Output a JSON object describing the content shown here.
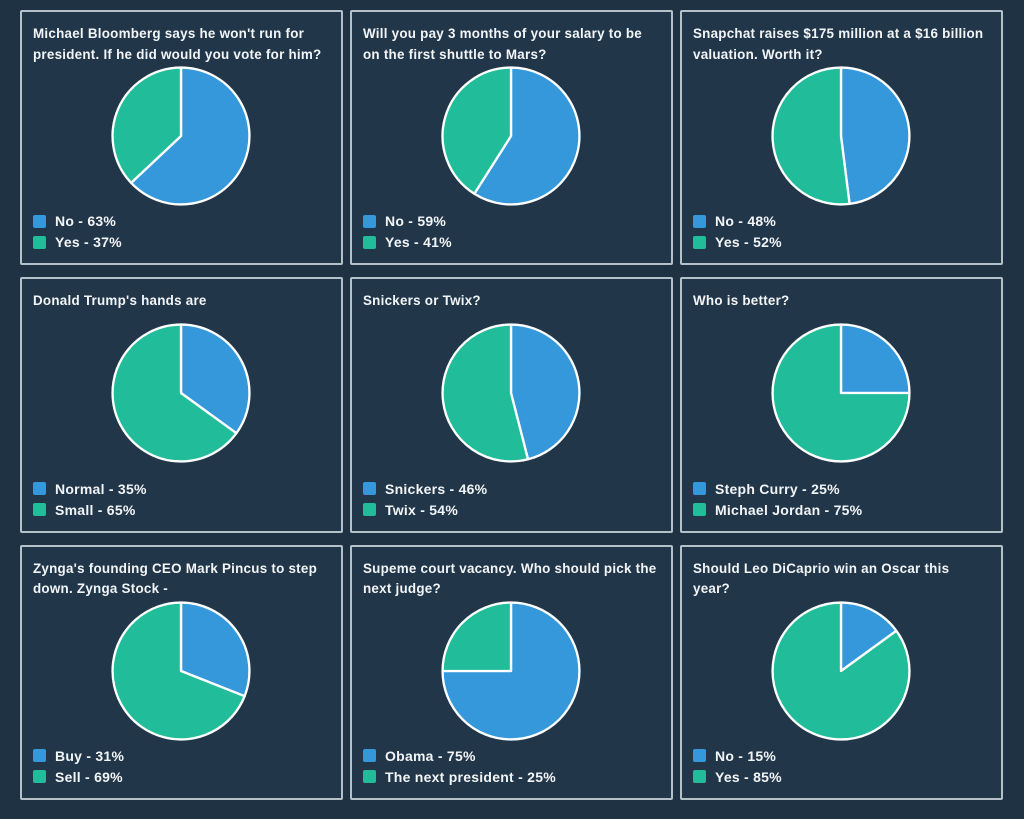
{
  "page": {
    "background": "#1e3243",
    "card_background": "#223649",
    "card_border": "#b5c1c9",
    "text_color": "#f2f5f7",
    "accent_blue": "#3498db",
    "accent_green": "#21bd9a",
    "pie_stroke": "#ffffff"
  },
  "cards": [
    {
      "title": "Michael Bloomberg says he won't run for president. If he did would you vote for him?",
      "legend": [
        {
          "text": "No - 63%",
          "color": "#3498db"
        },
        {
          "text": "Yes - 37%",
          "color": "#21bd9a"
        }
      ]
    },
    {
      "title": "Will you pay 3 months of your salary to be on the first shuttle to Mars?",
      "legend": [
        {
          "text": "No - 59%",
          "color": "#3498db"
        },
        {
          "text": "Yes - 41%",
          "color": "#21bd9a"
        }
      ]
    },
    {
      "title": "Snapchat raises $175 million at a $16 billion valuation. Worth it?",
      "legend": [
        {
          "text": "No - 48%",
          "color": "#3498db"
        },
        {
          "text": "Yes - 52%",
          "color": "#21bd9a"
        }
      ]
    },
    {
      "title": "Donald Trump's hands are",
      "legend": [
        {
          "text": "Normal - 35%",
          "color": "#3498db"
        },
        {
          "text": "Small - 65%",
          "color": "#21bd9a"
        }
      ]
    },
    {
      "title": "Snickers or Twix?",
      "legend": [
        {
          "text": "Snickers - 46%",
          "color": "#3498db"
        },
        {
          "text": "Twix - 54%",
          "color": "#21bd9a"
        }
      ]
    },
    {
      "title": "Who is better?",
      "legend": [
        {
          "text": "Steph Curry - 25%",
          "color": "#3498db"
        },
        {
          "text": "Michael Jordan - 75%",
          "color": "#21bd9a"
        }
      ]
    },
    {
      "title": "Zynga's founding CEO Mark Pincus to step down. Zynga Stock -",
      "legend": [
        {
          "text": "Buy - 31%",
          "color": "#3498db"
        },
        {
          "text": "Sell - 69%",
          "color": "#21bd9a"
        }
      ]
    },
    {
      "title": "Supeme court vacancy. Who should pick the next judge?",
      "legend": [
        {
          "text": "Obama - 75%",
          "color": "#3498db"
        },
        {
          "text": "The next president - 25%",
          "color": "#21bd9a"
        }
      ]
    },
    {
      "title": "Should Leo DiCaprio win an Oscar this year?",
      "legend": [
        {
          "text": "No - 15%",
          "color": "#3498db"
        },
        {
          "text": "Yes - 85%",
          "color": "#21bd9a"
        }
      ]
    }
  ],
  "chart_data": [
    {
      "type": "pie",
      "title": "Michael Bloomberg says he won't run for president. If he did would you vote for him?",
      "labels": [
        "No",
        "Yes"
      ],
      "values": [
        63,
        37
      ],
      "colors": [
        "#3498db",
        "#21bd9a"
      ],
      "start_angle": "12-oclock",
      "direction": "clockwise",
      "legend_position": "bottom-left"
    },
    {
      "type": "pie",
      "title": "Will you pay 3 months of your salary to be on the first shuttle to Mars?",
      "labels": [
        "No",
        "Yes"
      ],
      "values": [
        59,
        41
      ],
      "colors": [
        "#3498db",
        "#21bd9a"
      ],
      "start_angle": "12-oclock",
      "direction": "clockwise",
      "legend_position": "bottom-left"
    },
    {
      "type": "pie",
      "title": "Snapchat raises $175 million at a $16 billion valuation. Worth it?",
      "labels": [
        "No",
        "Yes"
      ],
      "values": [
        48,
        52
      ],
      "colors": [
        "#3498db",
        "#21bd9a"
      ],
      "start_angle": "12-oclock",
      "direction": "clockwise",
      "legend_position": "bottom-left"
    },
    {
      "type": "pie",
      "title": "Donald Trump's hands are",
      "labels": [
        "Normal",
        "Small"
      ],
      "values": [
        35,
        65
      ],
      "colors": [
        "#3498db",
        "#21bd9a"
      ],
      "start_angle": "12-oclock",
      "direction": "clockwise",
      "legend_position": "bottom-left"
    },
    {
      "type": "pie",
      "title": "Snickers or Twix?",
      "labels": [
        "Snickers",
        "Twix"
      ],
      "values": [
        46,
        54
      ],
      "colors": [
        "#3498db",
        "#21bd9a"
      ],
      "start_angle": "12-oclock",
      "direction": "clockwise",
      "legend_position": "bottom-left"
    },
    {
      "type": "pie",
      "title": "Who is better?",
      "labels": [
        "Steph Curry",
        "Michael Jordan"
      ],
      "values": [
        25,
        75
      ],
      "colors": [
        "#3498db",
        "#21bd9a"
      ],
      "start_angle": "12-oclock",
      "direction": "clockwise",
      "legend_position": "bottom-left"
    },
    {
      "type": "pie",
      "title": "Zynga's founding CEO Mark Pincus to step down. Zynga Stock -",
      "labels": [
        "Buy",
        "Sell"
      ],
      "values": [
        31,
        69
      ],
      "colors": [
        "#3498db",
        "#21bd9a"
      ],
      "start_angle": "12-oclock",
      "direction": "clockwise",
      "legend_position": "bottom-left"
    },
    {
      "type": "pie",
      "title": "Supeme court vacancy. Who should pick the next judge?",
      "labels": [
        "Obama",
        "The next president"
      ],
      "values": [
        75,
        25
      ],
      "colors": [
        "#3498db",
        "#21bd9a"
      ],
      "start_angle": "12-oclock",
      "direction": "clockwise",
      "legend_position": "bottom-left"
    },
    {
      "type": "pie",
      "title": "Should Leo DiCaprio win an Oscar this year?",
      "labels": [
        "No",
        "Yes"
      ],
      "values": [
        15,
        85
      ],
      "colors": [
        "#3498db",
        "#21bd9a"
      ],
      "start_angle": "12-oclock",
      "direction": "clockwise",
      "legend_position": "bottom-left"
    }
  ]
}
